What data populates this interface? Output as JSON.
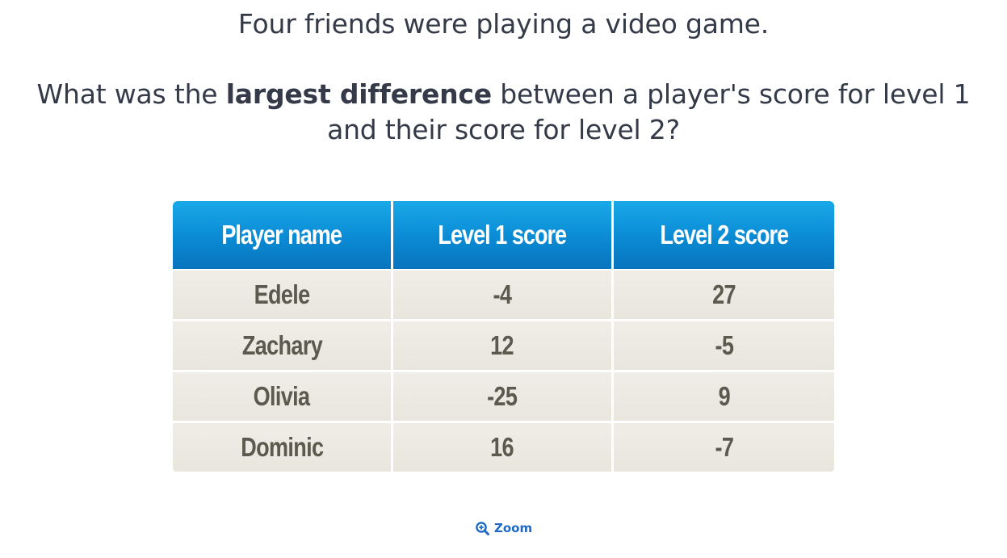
{
  "question": {
    "intro": "Four friends were playing a video game.",
    "prompt_before": "What was the ",
    "prompt_bold": "largest difference",
    "prompt_after": " between a player's score for level 1 and their score for level 2?"
  },
  "table": {
    "headers": [
      "Player name",
      "Level 1 score",
      "Level 2 score"
    ],
    "rows": [
      [
        "Edele",
        "-4",
        "27"
      ],
      [
        "Zachary",
        "12",
        "-5"
      ],
      [
        "Olivia",
        "-25",
        "9"
      ],
      [
        "Dominic",
        "16",
        "-7"
      ]
    ],
    "colors": {
      "header_top": "#19a9e8",
      "header_bottom": "#0874bd",
      "cell_bg": "#ebe9e1",
      "cell_text": "#5b5a4e"
    }
  },
  "zoom": {
    "label": "Zoom",
    "icon": "zoom-in-icon",
    "color": "#1f69c9"
  }
}
